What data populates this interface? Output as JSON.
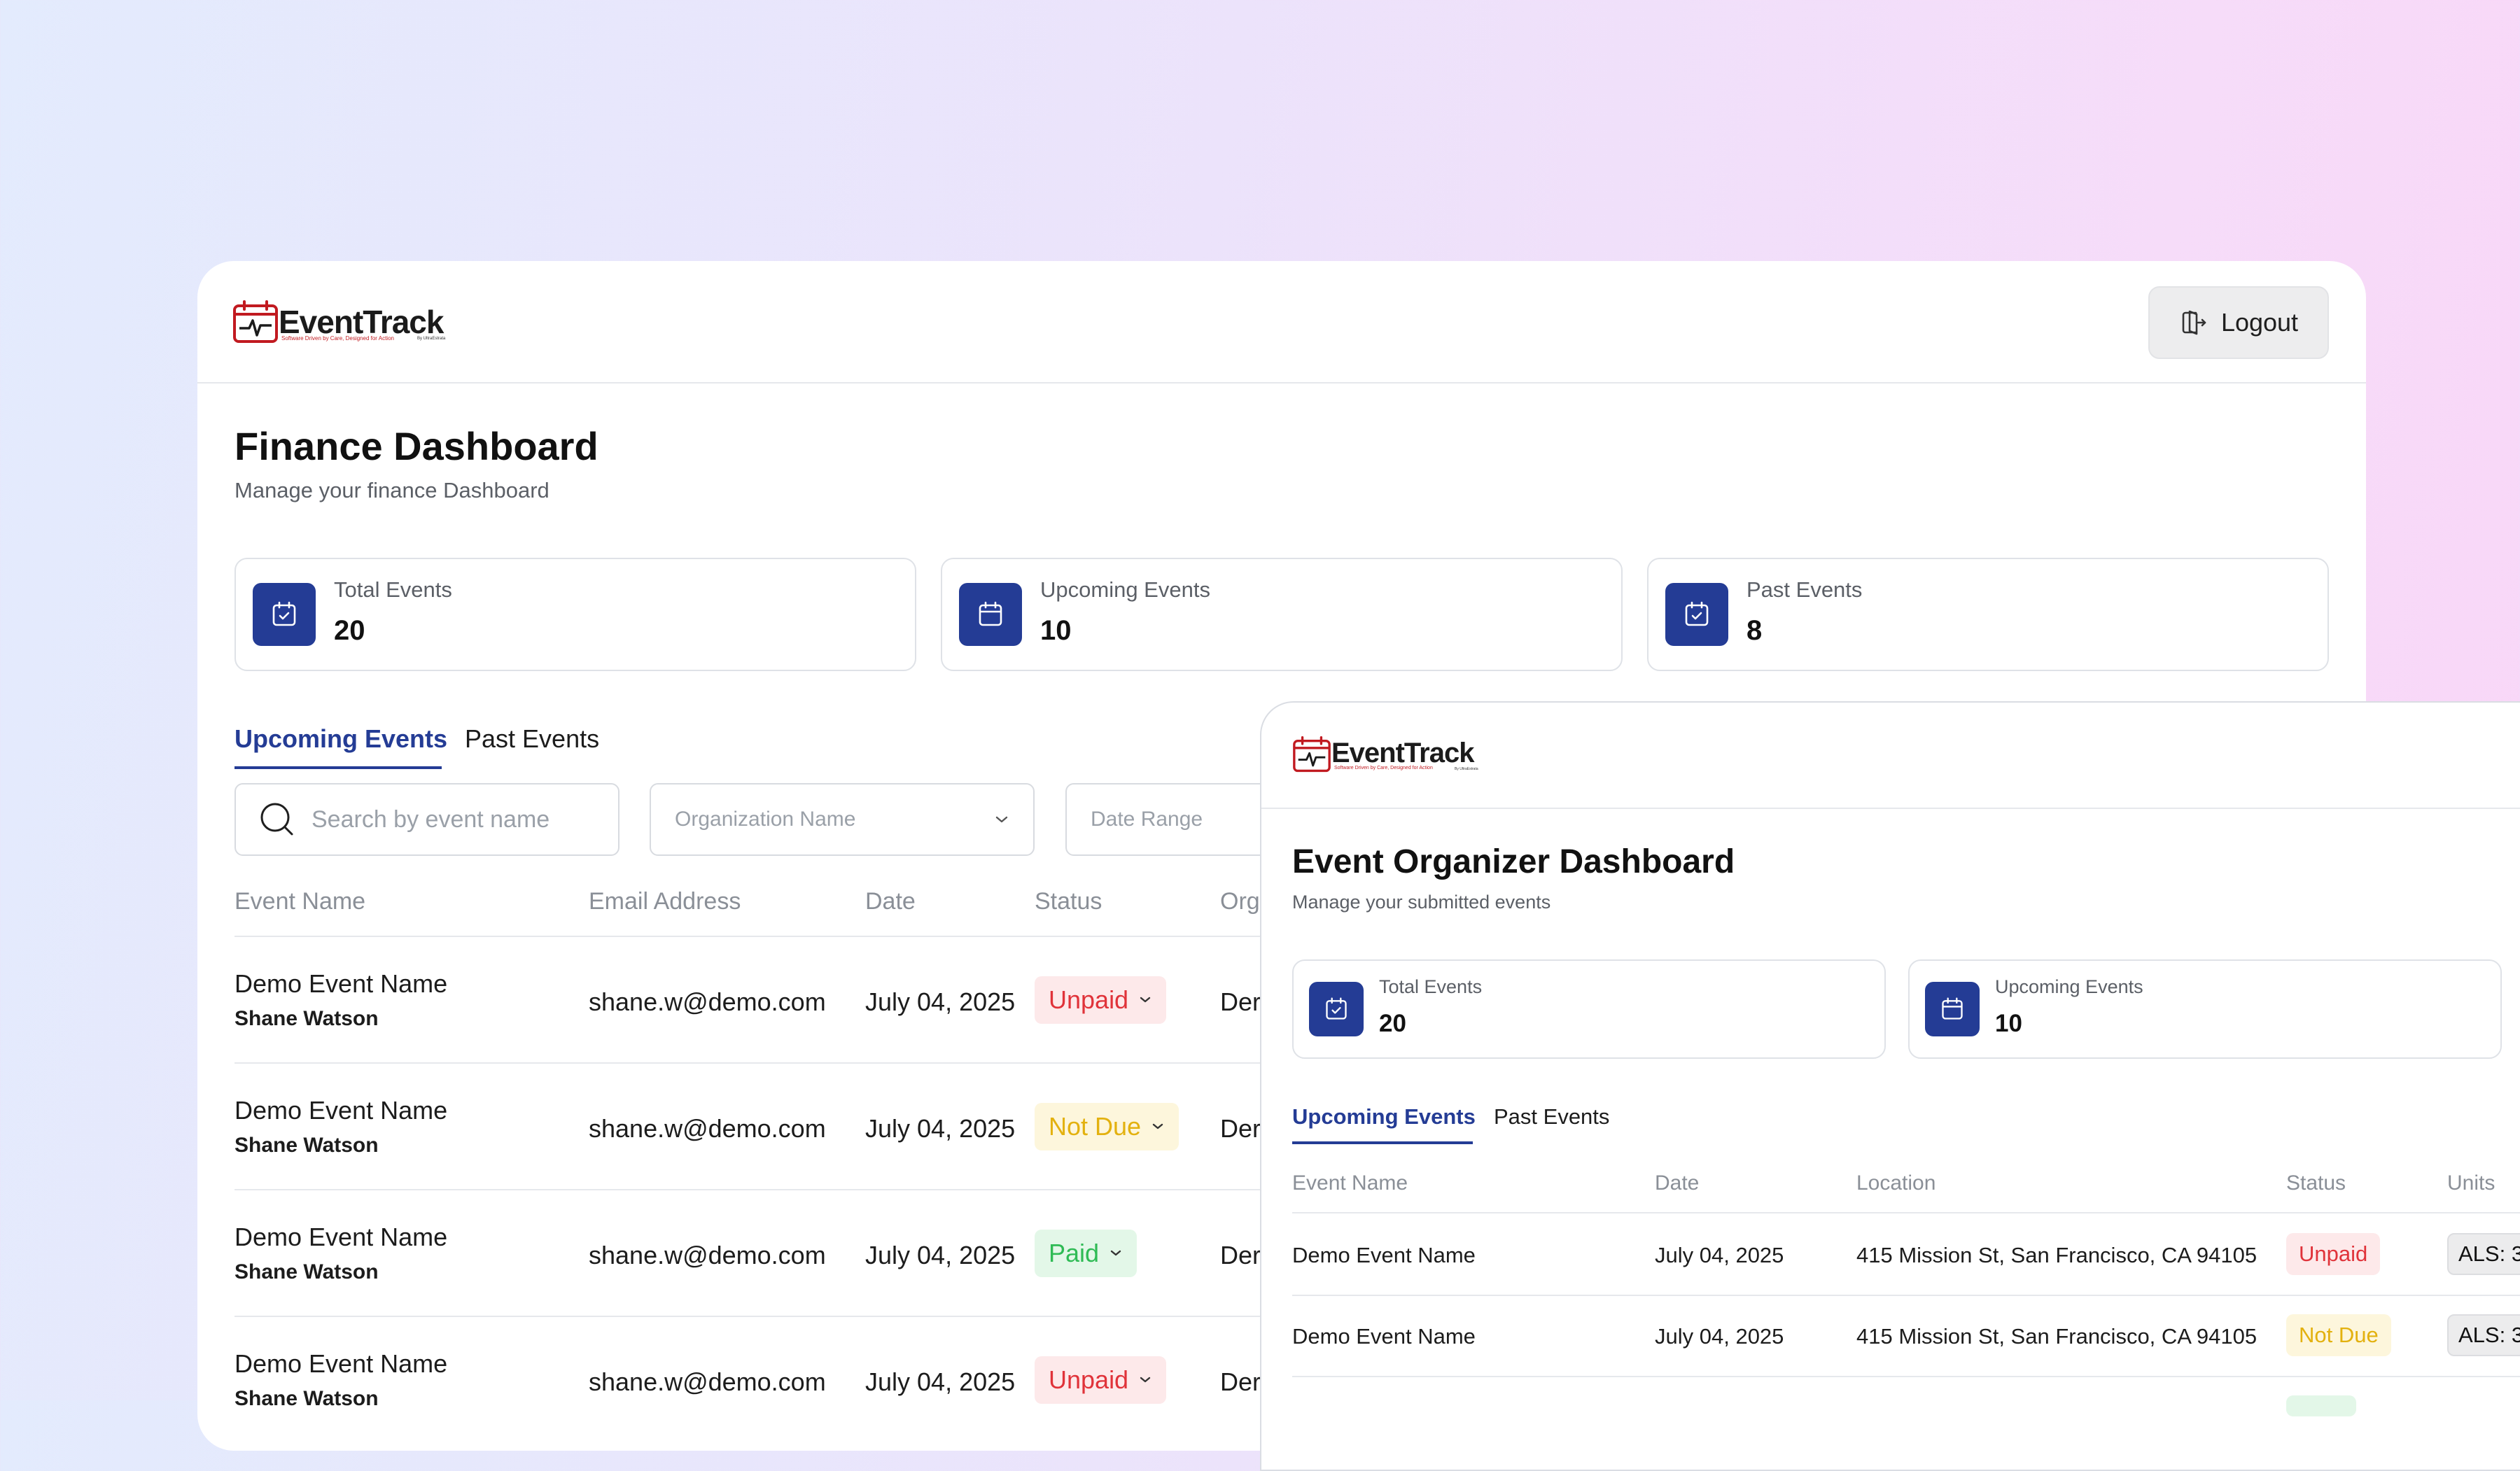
{
  "finance": {
    "logo": {
      "name": "EventTrack",
      "tagline": "Software Driven by Care, Designed for Action",
      "by": "By UltraEstrata"
    },
    "logout_label": "Logout",
    "title": "Finance Dashboard",
    "subtitle": "Manage your finance Dashboard",
    "stats": [
      {
        "label": "Total Events",
        "value": "20"
      },
      {
        "label": "Upcoming Events",
        "value": "10"
      },
      {
        "label": "Past Events",
        "value": "8"
      }
    ],
    "tabs": [
      "Upcoming Events",
      "Past Events"
    ],
    "search_placeholder": "Search by event name",
    "org_placeholder": "Organization Name",
    "date_placeholder": "Date Range",
    "columns": [
      "Event Name",
      "Email Address",
      "Date",
      "Status",
      "Org"
    ],
    "rows": [
      {
        "event": "Demo Event Name",
        "person": "Shane Watson",
        "email": "shane.w@demo.com",
        "date": "July 04, 2025",
        "status": "Unpaid",
        "org": "Der"
      },
      {
        "event": "Demo Event Name",
        "person": "Shane Watson",
        "email": "shane.w@demo.com",
        "date": "July 04, 2025",
        "status": "Not Due",
        "org": "Der"
      },
      {
        "event": "Demo Event Name",
        "person": "Shane Watson",
        "email": "shane.w@demo.com",
        "date": "July 04, 2025",
        "status": "Paid",
        "org": "Der"
      },
      {
        "event": "Demo Event Name",
        "person": "Shane Watson",
        "email": "shane.w@demo.com",
        "date": "July 04, 2025",
        "status": "Unpaid",
        "org": "Der"
      }
    ]
  },
  "organizer": {
    "logo": {
      "name": "EventTrack",
      "tagline": "Software Driven by Care, Designed for Action",
      "by": "By UltraEstrata"
    },
    "title": "Event Organizer Dashboard",
    "subtitle": "Manage your submitted events",
    "stats": [
      {
        "label": "Total Events",
        "value": "20"
      },
      {
        "label": "Upcoming Events",
        "value": "10"
      }
    ],
    "tabs": [
      "Upcoming Events",
      "Past Events"
    ],
    "columns": [
      "Event Name",
      "Date",
      "Location",
      "Status",
      "Units"
    ],
    "rows": [
      {
        "event": "Demo Event Name",
        "date": "July 04, 2025",
        "location": "415 Mission St, San Francisco, CA 94105",
        "status": "Unpaid",
        "units": "ALS: 3"
      },
      {
        "event": "Demo Event Name",
        "date": "July 04, 2025",
        "location": "415 Mission St, San Francisco, CA 94105",
        "status": "Not Due",
        "units": "ALS: 3"
      }
    ]
  },
  "colors": {
    "brand": "#243c95",
    "logo_red": "#c11a20",
    "unpaid": "#e0333a",
    "not_due": "#e3b10f",
    "paid": "#2fbb55"
  },
  "icons": {
    "logo": "calendar-heartbeat-icon",
    "logout": "logout-icon",
    "stat_total": "calendar-check-icon",
    "stat_upcoming": "calendar-icon",
    "stat_past": "calendar-check-icon",
    "search": "search-icon",
    "dropdown": "chevron-down-icon"
  }
}
